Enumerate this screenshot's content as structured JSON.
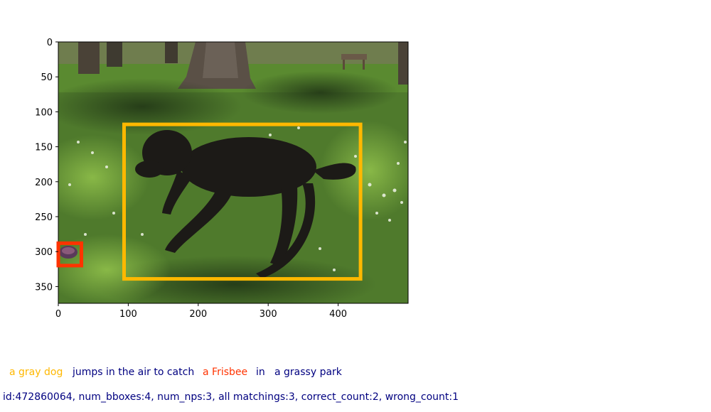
{
  "image": {
    "description_icon": "photo-dog-in-park",
    "x_ticks": [
      "0",
      "100",
      "200",
      "300",
      "400"
    ],
    "y_ticks": [
      "0",
      "50",
      "100",
      "150",
      "200",
      "250",
      "300",
      "350"
    ],
    "x_range": [
      0,
      500
    ],
    "y_range": [
      0,
      375
    ]
  },
  "boxes": [
    {
      "name": "gray-dog-box",
      "color": "#ffb800",
      "x0": 94,
      "y0": 118,
      "x1": 432,
      "y1": 339
    },
    {
      "name": "frisbee-box",
      "color": "#ff3300",
      "x0": 0,
      "y0": 288,
      "x1": 33,
      "y1": 320
    }
  ],
  "caption": {
    "p1": "a gray dog",
    "p2": "jumps in the air to catch",
    "p3": "a Frisbee",
    "p4": "in",
    "p5": "a grassy park",
    "color_dog": "#ffb800",
    "color_text": "#000080",
    "color_frisbee": "#ff3300"
  },
  "meta": {
    "text": "id:472860064, num_bboxes:4, num_nps:3, all matchings:3, correct_count:2, wrong_count:1",
    "color": "#000080"
  }
}
